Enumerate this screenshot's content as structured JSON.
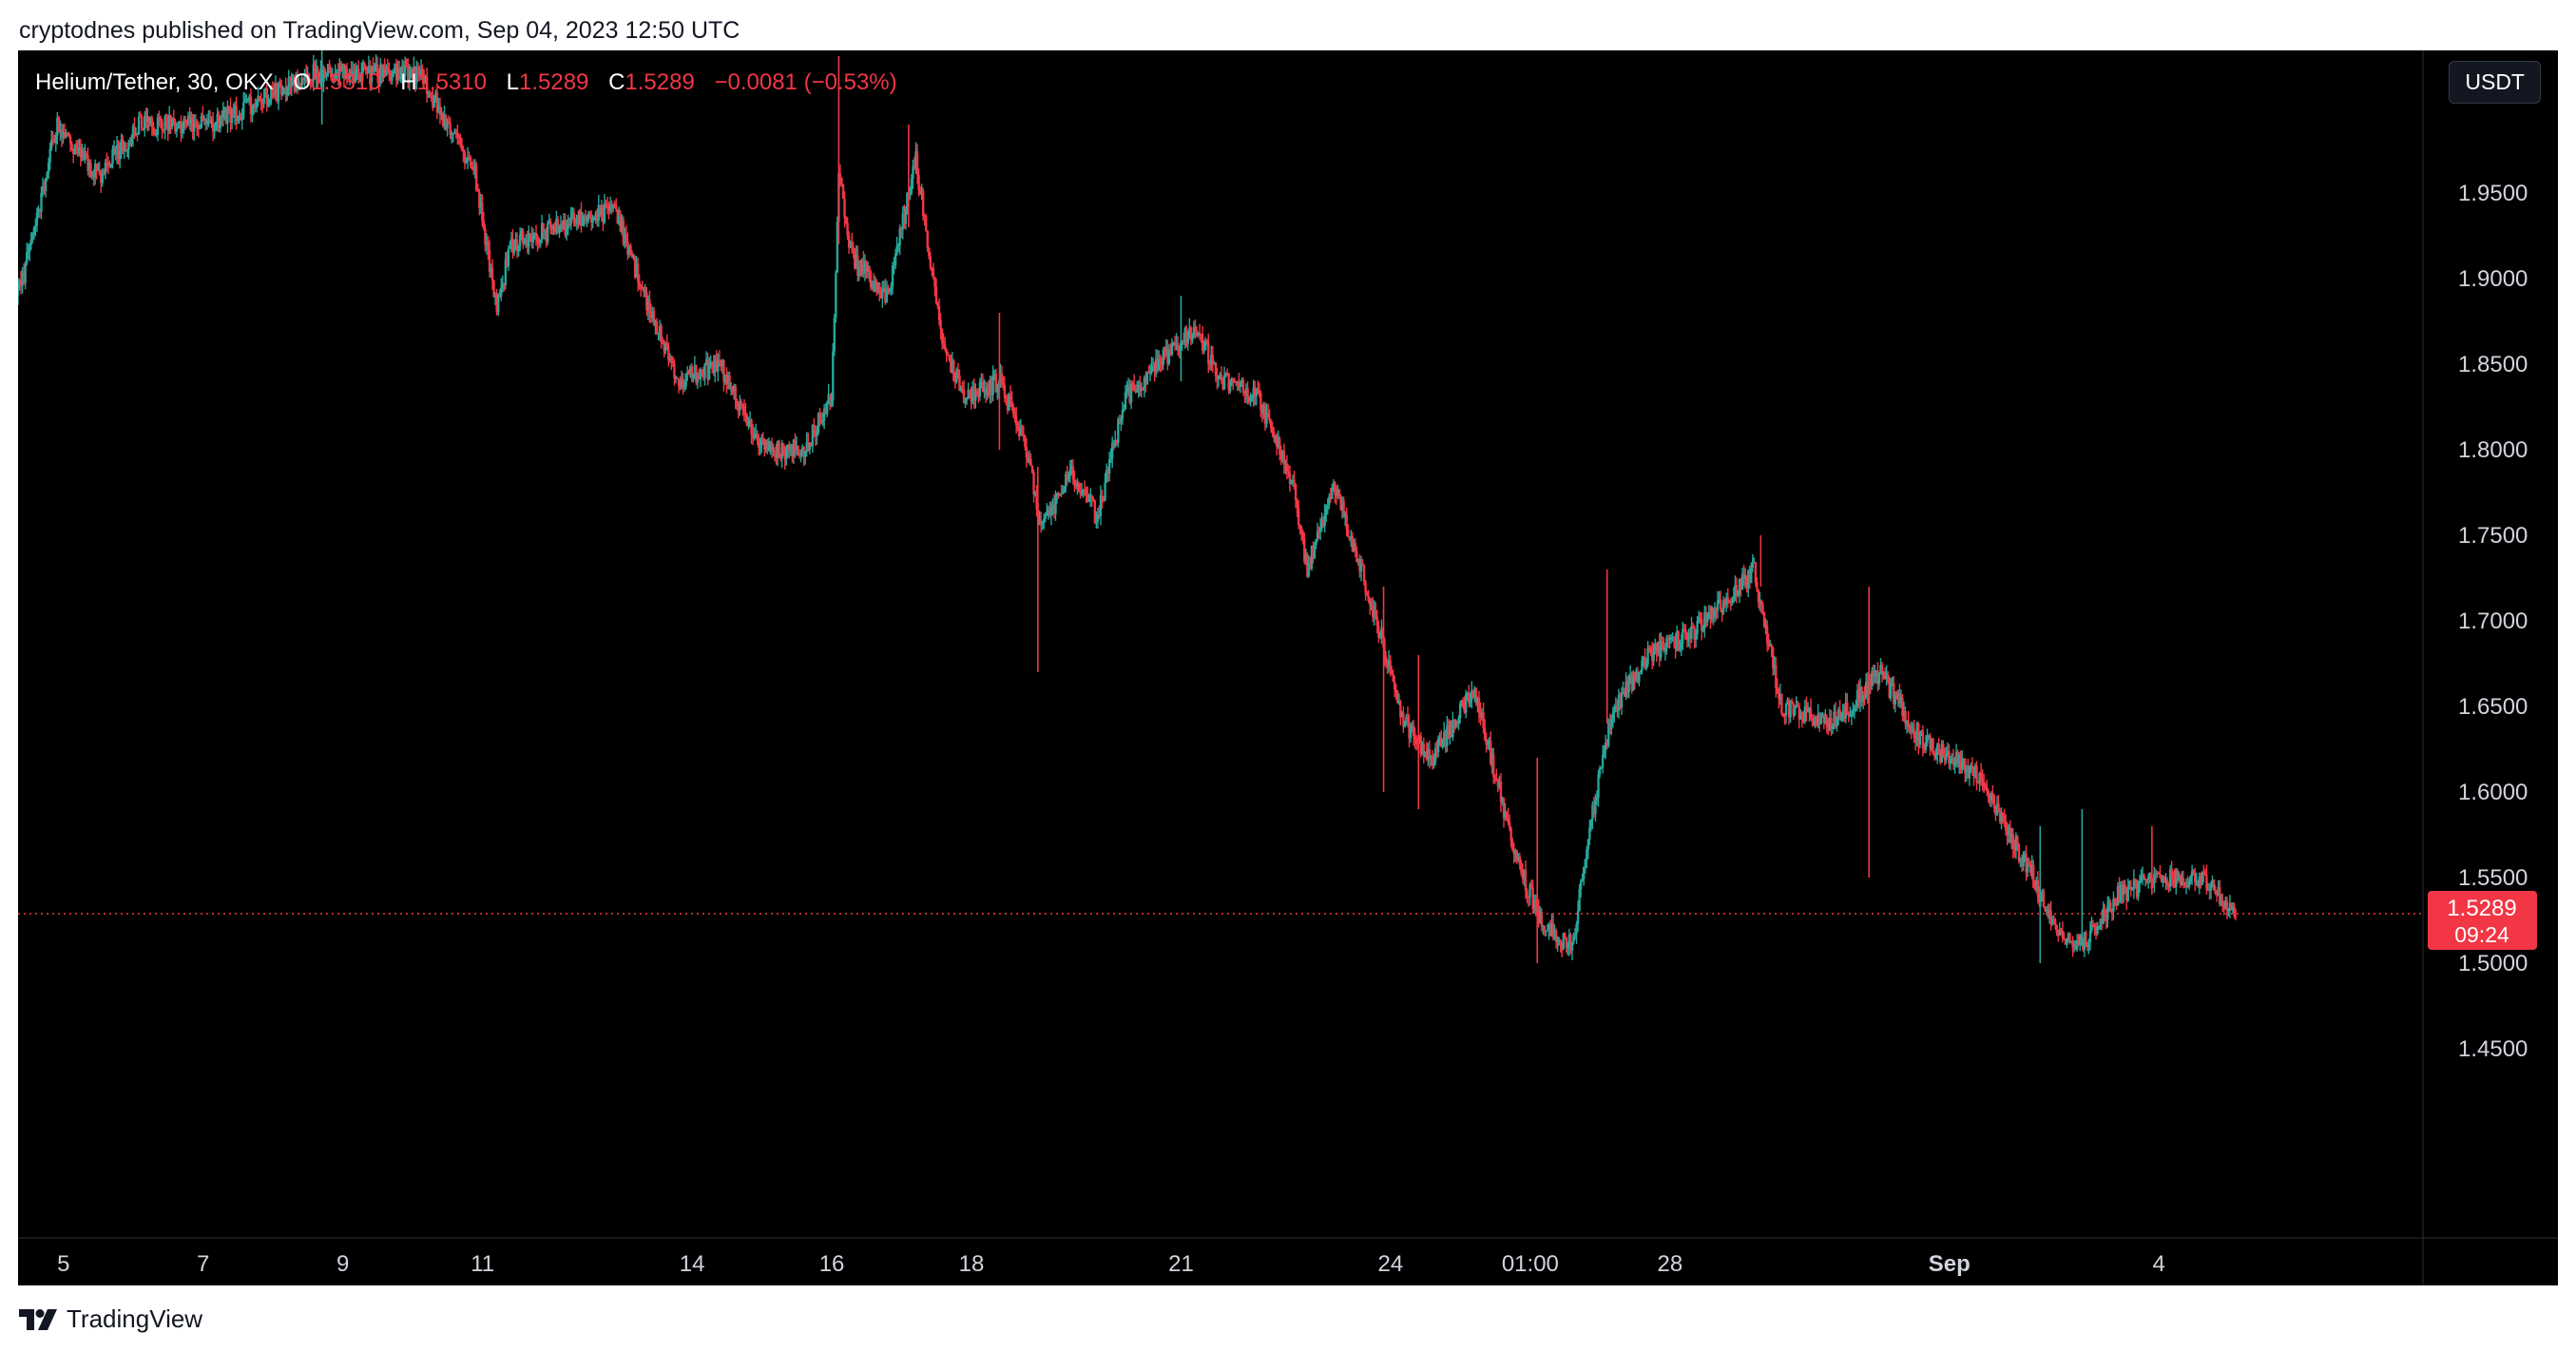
{
  "header": {
    "published": "cryptodnes published on TradingView.com, Sep 04, 2023 12:50 UTC"
  },
  "legend": {
    "symbol": "Helium/Tether, 30, OKX",
    "open_label": "O",
    "open": "1.5310",
    "high_label": "H",
    "high": "1.5310",
    "low_label": "L",
    "low": "1.5289",
    "close_label": "C",
    "close": "1.5289",
    "change": "−0.0081 (−0.53%)"
  },
  "currency_button": "USDT",
  "footer": {
    "brand": "TradingView"
  },
  "colors": {
    "up": "#26a69a",
    "down": "#f23645",
    "background": "#000000",
    "axis_text": "#d1d4dc"
  },
  "chart_data": {
    "type": "candlestick",
    "interval": "30",
    "y_ticks": [
      "1.4500",
      "1.5000",
      "1.5500",
      "1.6000",
      "1.6500",
      "1.7000",
      "1.7500",
      "1.8000",
      "1.8500",
      "1.9000",
      "1.9500"
    ],
    "ylim": [
      1.4,
      2.0
    ],
    "x_ticks": [
      "5",
      "7",
      "9",
      "11",
      "14",
      "16",
      "18",
      "21",
      "24",
      "01:00",
      "28",
      "Sep",
      "4"
    ],
    "x_tick_positions": [
      0.4,
      2.4,
      4.4,
      6.4,
      9.4,
      11.4,
      13.4,
      16.4,
      19.4,
      21.4,
      23.4,
      27.4,
      30.4
    ],
    "xlim": [
      -0.25,
      33.5
    ],
    "last_price": "1.5289",
    "countdown": "09:24",
    "last_price_value": 1.5289,
    "path_anchors": [
      [
        -0.25,
        1.89
      ],
      [
        0.0,
        1.93
      ],
      [
        0.3,
        1.99
      ],
      [
        0.9,
        1.96
      ],
      [
        1.5,
        1.99
      ],
      [
        2.5,
        1.99
      ],
      [
        4.0,
        2.02
      ],
      [
        5.5,
        2.02
      ],
      [
        6.3,
        1.96
      ],
      [
        6.6,
        1.88
      ],
      [
        6.8,
        1.92
      ],
      [
        7.5,
        1.93
      ],
      [
        8.3,
        1.94
      ],
      [
        8.8,
        1.88
      ],
      [
        9.2,
        1.84
      ],
      [
        9.8,
        1.85
      ],
      [
        10.4,
        1.8
      ],
      [
        11.0,
        1.8
      ],
      [
        11.4,
        1.83
      ],
      [
        11.5,
        1.96
      ],
      [
        11.7,
        1.91
      ],
      [
        12.2,
        1.89
      ],
      [
        12.6,
        1.97
      ],
      [
        13.0,
        1.86
      ],
      [
        13.3,
        1.83
      ],
      [
        13.8,
        1.84
      ],
      [
        14.2,
        1.8
      ],
      [
        14.4,
        1.75
      ],
      [
        14.8,
        1.79
      ],
      [
        15.2,
        1.76
      ],
      [
        15.6,
        1.83
      ],
      [
        16.3,
        1.86
      ],
      [
        16.6,
        1.87
      ],
      [
        17.0,
        1.84
      ],
      [
        17.5,
        1.83
      ],
      [
        18.0,
        1.78
      ],
      [
        18.2,
        1.73
      ],
      [
        18.6,
        1.78
      ],
      [
        19.2,
        1.7
      ],
      [
        19.6,
        1.64
      ],
      [
        20.0,
        1.62
      ],
      [
        20.6,
        1.66
      ],
      [
        21.2,
        1.56
      ],
      [
        21.6,
        1.52
      ],
      [
        22.0,
        1.51
      ],
      [
        22.2,
        1.57
      ],
      [
        22.6,
        1.65
      ],
      [
        23.1,
        1.68
      ],
      [
        23.6,
        1.69
      ],
      [
        24.2,
        1.71
      ],
      [
        24.6,
        1.73
      ],
      [
        25.0,
        1.65
      ],
      [
        25.6,
        1.64
      ],
      [
        26.0,
        1.65
      ],
      [
        26.4,
        1.67
      ],
      [
        27.0,
        1.63
      ],
      [
        27.8,
        1.61
      ],
      [
        28.2,
        1.58
      ],
      [
        28.6,
        1.55
      ],
      [
        28.9,
        1.52
      ],
      [
        29.3,
        1.51
      ],
      [
        29.8,
        1.54
      ],
      [
        30.4,
        1.55
      ],
      [
        31.0,
        1.55
      ],
      [
        31.5,
        1.53
      ]
    ],
    "spikes": [
      [
        4.1,
        2.05,
        1.99
      ],
      [
        11.5,
        2.03,
        1.92
      ],
      [
        12.5,
        1.99,
        1.93
      ],
      [
        13.8,
        1.88,
        1.8
      ],
      [
        14.35,
        1.79,
        1.67
      ],
      [
        16.4,
        1.89,
        1.84
      ],
      [
        19.3,
        1.72,
        1.6
      ],
      [
        19.8,
        1.68,
        1.59
      ],
      [
        21.5,
        1.62,
        1.5
      ],
      [
        22.5,
        1.73,
        1.64
      ],
      [
        24.7,
        1.75,
        1.72
      ],
      [
        26.25,
        1.72,
        1.55
      ],
      [
        28.7,
        1.58,
        1.5
      ],
      [
        29.3,
        1.59,
        1.51
      ],
      [
        30.3,
        1.58,
        1.54
      ]
    ]
  }
}
